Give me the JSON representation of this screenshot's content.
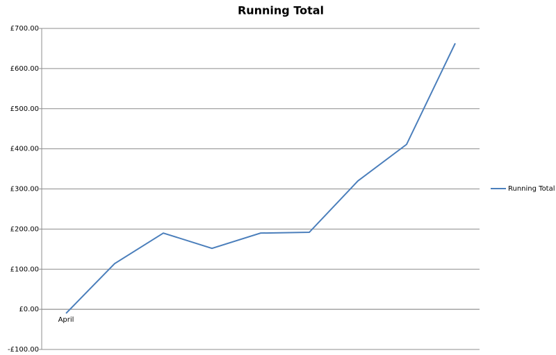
{
  "chart_data": {
    "type": "line",
    "title": "Running Total",
    "categories": [
      "April",
      null,
      null,
      null,
      null,
      null,
      null,
      null,
      null
    ],
    "series": [
      {
        "name": "Running Total",
        "color": "#4a7ebb",
        "values": [
          -10,
          114,
          190,
          152,
          190,
          192,
          320,
          411,
          663
        ]
      }
    ],
    "ylim": [
      -100,
      700
    ],
    "yticks": [
      {
        "value": -100,
        "label": "-£100.00"
      },
      {
        "value": 0,
        "label": "£0.00"
      },
      {
        "value": 100,
        "label": "£100.00"
      },
      {
        "value": 200,
        "label": "£200.00"
      },
      {
        "value": 300,
        "label": "£300.00"
      },
      {
        "value": 400,
        "label": "£400.00"
      },
      {
        "value": 500,
        "label": "£500.00"
      },
      {
        "value": 600,
        "label": "£600.00"
      },
      {
        "value": 700,
        "label": "£700.00"
      }
    ],
    "grid": true,
    "legend": "right"
  }
}
